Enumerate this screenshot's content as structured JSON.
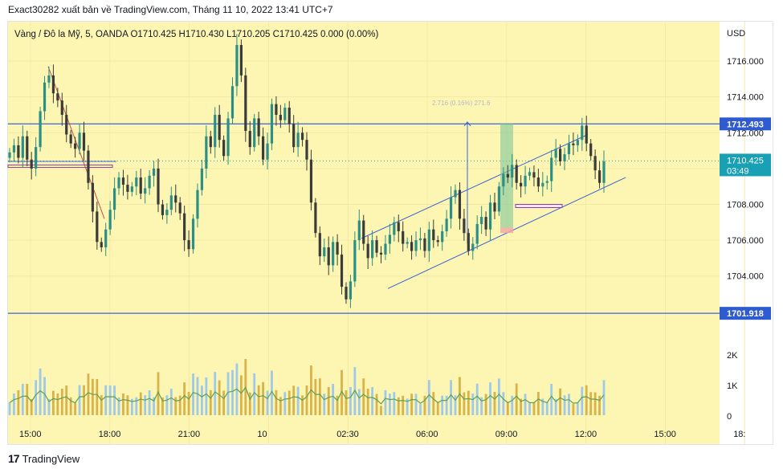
{
  "header": {
    "attribution": "Exact30282 xuất bản về TradingView.com, Tháng 11 10, 2022 13:41 UTC+7"
  },
  "legend": {
    "text": "Vàng / Đô la Mỹ, 5, OANDA  O1710.425  H1710.430  L1710.205  C1710.425  0.000 (0.00%)"
  },
  "footer": {
    "brand": "TradingView"
  },
  "colors": {
    "background": "#fdf6b2",
    "up": "#2a8f86",
    "down": "#3b3b3b",
    "drawing": "#3b63d6",
    "trend_red": "#c94b4b",
    "current_price": "#1aa0b4",
    "ma_line": "#5ea05a"
  },
  "chart_data": {
    "type": "candlestick",
    "symbol": "Vàng / Đô la Mỹ",
    "timeframe": "5",
    "exchange": "OANDA",
    "ohlc": {
      "open": 1710.425,
      "high": 1710.43,
      "low": 1710.205,
      "close": 1710.425,
      "change": "0.000 (0.00%)"
    },
    "currency": "USD",
    "y_ticks": [
      "1716.000",
      "1714.000",
      "1712.000",
      "1710.000",
      "1708.000",
      "1706.000",
      "1704.000"
    ],
    "x_ticks": [
      "15:00",
      "18:00",
      "21:00",
      "10",
      "02:30",
      "06:00",
      "09:00",
      "12:00",
      "15:00",
      "18:"
    ],
    "volume_ticks": [
      "2K",
      "1K",
      "0"
    ],
    "ylim": [
      1700.4,
      1718.2
    ],
    "horizontal_levels": [
      {
        "price": 1712.493,
        "label": "1712.493"
      },
      {
        "price": 1701.918,
        "label": "1701.918"
      }
    ],
    "current_price": {
      "price": 1710.425,
      "label": "1710.425",
      "countdown": "03:49"
    },
    "measure_label": "2.716 (0.16%) 271.6",
    "candle_closes": [
      1710.9,
      1711.3,
      1710.6,
      1711.8,
      1710.5,
      1710.0,
      1711.2,
      1713.2,
      1714.8,
      1715.2,
      1714.2,
      1713.8,
      1713.0,
      1711.9,
      1711.4,
      1711.1,
      1712.0,
      1711.0,
      1709.2,
      1707.6,
      1705.9,
      1705.6,
      1706.6,
      1707.7,
      1708.9,
      1709.5,
      1709.1,
      1708.7,
      1709.0,
      1709.5,
      1708.6,
      1708.9,
      1709.6,
      1710.0,
      1708.0,
      1707.4,
      1707.7,
      1708.5,
      1708.1,
      1707.5,
      1706.0,
      1705.5,
      1707.2,
      1708.8,
      1710.0,
      1711.8,
      1711.2,
      1713.0,
      1711.6,
      1710.7,
      1712.8,
      1714.6,
      1716.9,
      1715.2,
      1712.1,
      1711.2,
      1712.8,
      1711.8,
      1710.5,
      1711.4,
      1713.6,
      1713.0,
      1712.7,
      1713.4,
      1712.5,
      1711.2,
      1712.0,
      1711.6,
      1710.5,
      1708.1,
      1706.4,
      1705.1,
      1705.6,
      1704.6,
      1705.9,
      1705.2,
      1703.4,
      1702.7,
      1703.7,
      1706.0,
      1707.1,
      1705.8,
      1705.0,
      1706.0,
      1705.3,
      1705.2,
      1705.8,
      1706.3,
      1707.0,
      1706.5,
      1705.8,
      1705.9,
      1705.4,
      1706.0,
      1706.1,
      1705.4,
      1706.6,
      1706.0,
      1705.9,
      1706.5,
      1707.2,
      1708.4,
      1708.8,
      1707.2,
      1706.4,
      1705.4,
      1705.8,
      1706.9,
      1707.3,
      1706.6,
      1708.1,
      1707.6,
      1709.0,
      1709.7,
      1709.5,
      1710.2,
      1709.2,
      1709.0,
      1709.6,
      1709.8,
      1709.5,
      1709.0,
      1709.2,
      1709.3,
      1710.6,
      1711.1,
      1710.4,
      1710.8,
      1711.4,
      1711.3,
      1711.6,
      1712.4,
      1711.4,
      1710.7,
      1709.9,
      1709.2,
      1710.4
    ]
  }
}
